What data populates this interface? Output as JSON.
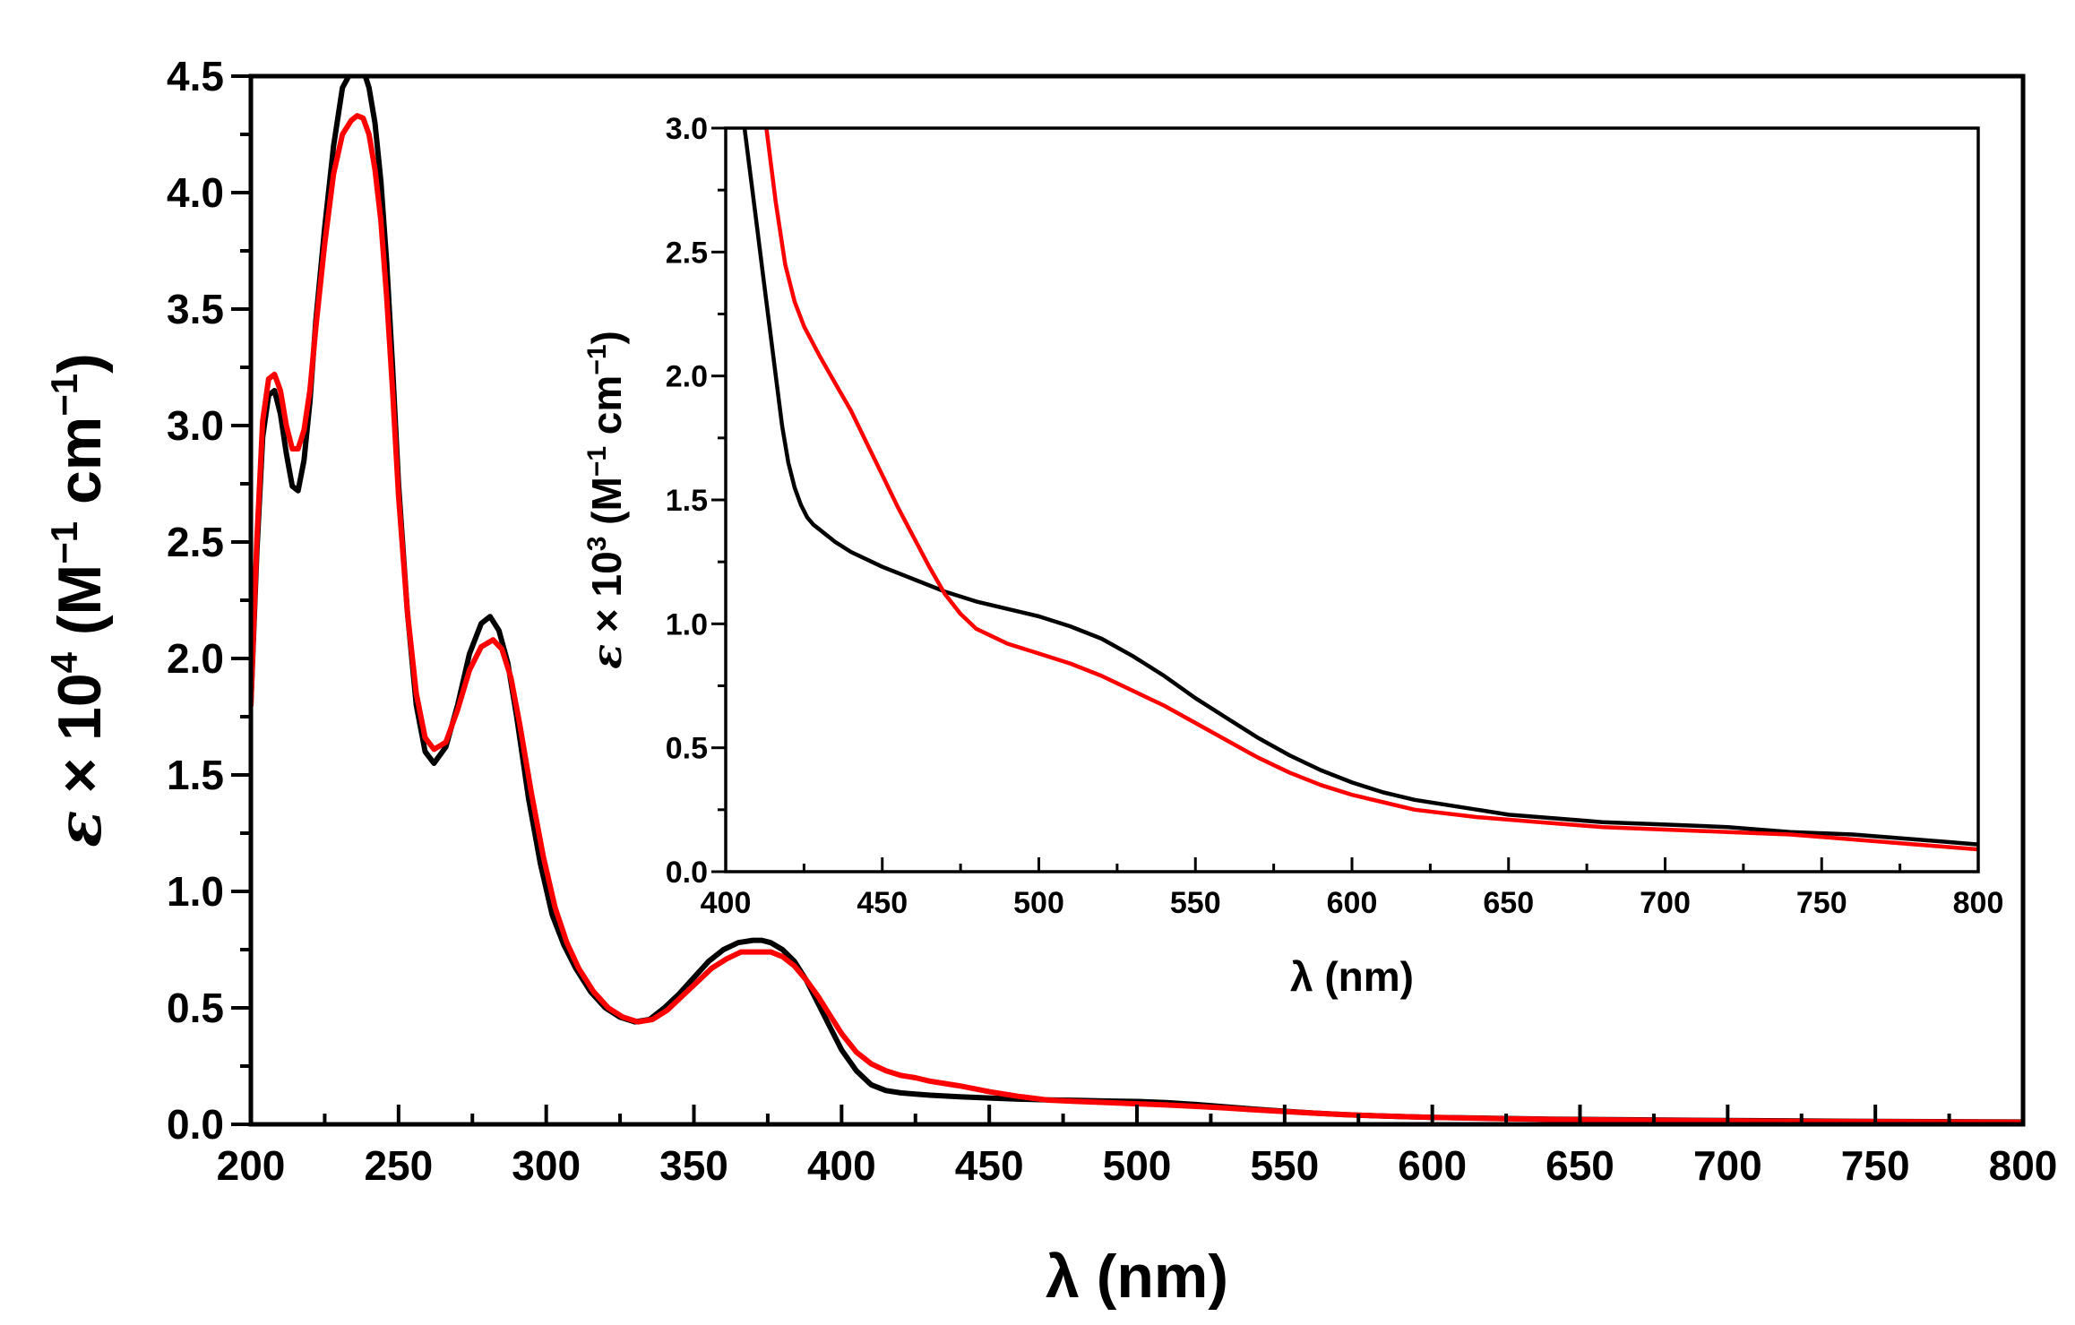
{
  "chart_data": [
    {
      "id": "main",
      "type": "line",
      "title": "",
      "xlabel": "λ (nm)",
      "ylabel": {
        "symbol": "ε",
        "mult": " × 10",
        "exp": "4",
        "unit_open": " (M",
        "unit_exp1": "−1",
        "unit_mid": " cm",
        "unit_exp2": "−1",
        "unit_close": ")"
      },
      "xlim": [
        200,
        800
      ],
      "ylim": [
        0,
        4.5
      ],
      "xticks": [
        200,
        250,
        300,
        350,
        400,
        450,
        500,
        550,
        600,
        650,
        700,
        750,
        800
      ],
      "xtick_labels": [
        "200",
        "250",
        "300",
        "350",
        "400",
        "450",
        "500",
        "550",
        "600",
        "650",
        "700",
        "750",
        "800"
      ],
      "yticks": [
        0,
        0.5,
        1,
        1.5,
        2,
        2.5,
        3,
        3.5,
        4,
        4.5
      ],
      "ytick_labels": [
        "0.0",
        "0.5",
        "1.0",
        "1.5",
        "2.0",
        "2.5",
        "3.0",
        "3.5",
        "4.0",
        "4.5"
      ],
      "grid": false,
      "series": [
        {
          "name": "black",
          "color": "#000000",
          "x": [
            200,
            202,
            204,
            206,
            208,
            210,
            212,
            214,
            216,
            218,
            220,
            222,
            225,
            228,
            231,
            234,
            236,
            238,
            240,
            242,
            244,
            246,
            248,
            250,
            253,
            256,
            259,
            262,
            266,
            270,
            274,
            278,
            281,
            284,
            287,
            290,
            294,
            298,
            302,
            306,
            310,
            315,
            320,
            325,
            330,
            335,
            340,
            345,
            350,
            355,
            360,
            365,
            370,
            373,
            376,
            380,
            384,
            388,
            392,
            396,
            400,
            405,
            410,
            415,
            420,
            425,
            430,
            440,
            450,
            460,
            470,
            480,
            490,
            500,
            510,
            520,
            530,
            540,
            550,
            560,
            570,
            580,
            590,
            600,
            620,
            640,
            660,
            680,
            700,
            720,
            740,
            760,
            780,
            800
          ],
          "y": [
            1.8,
            2.45,
            2.95,
            3.13,
            3.15,
            3.05,
            2.88,
            2.74,
            2.72,
            2.85,
            3.1,
            3.45,
            3.85,
            4.2,
            4.45,
            4.52,
            4.55,
            4.53,
            4.45,
            4.3,
            4.05,
            3.7,
            3.25,
            2.75,
            2.2,
            1.8,
            1.6,
            1.55,
            1.62,
            1.8,
            2.02,
            2.15,
            2.18,
            2.12,
            1.98,
            1.75,
            1.4,
            1.12,
            0.9,
            0.77,
            0.67,
            0.57,
            0.5,
            0.46,
            0.44,
            0.45,
            0.5,
            0.56,
            0.63,
            0.7,
            0.75,
            0.78,
            0.79,
            0.79,
            0.78,
            0.75,
            0.7,
            0.62,
            0.52,
            0.42,
            0.32,
            0.23,
            0.17,
            0.145,
            0.135,
            0.13,
            0.125,
            0.118,
            0.113,
            0.108,
            0.105,
            0.103,
            0.1,
            0.098,
            0.093,
            0.085,
            0.075,
            0.065,
            0.056,
            0.048,
            0.042,
            0.037,
            0.033,
            0.03,
            0.026,
            0.022,
            0.02,
            0.018,
            0.016,
            0.015,
            0.013,
            0.012,
            0.011,
            0.01
          ]
        },
        {
          "name": "red",
          "color": "#ff0000",
          "x": [
            200,
            202,
            204,
            206,
            208,
            210,
            212,
            214,
            216,
            218,
            220,
            222,
            225,
            228,
            231,
            234,
            236,
            238,
            240,
            242,
            244,
            246,
            248,
            250,
            253,
            256,
            259,
            262,
            266,
            270,
            274,
            278,
            282,
            285,
            288,
            291,
            295,
            299,
            303,
            307,
            311,
            316,
            321,
            326,
            331,
            336,
            341,
            346,
            351,
            356,
            361,
            366,
            371,
            376,
            380,
            384,
            388,
            392,
            396,
            400,
            405,
            410,
            415,
            420,
            425,
            430,
            440,
            450,
            460,
            470,
            480,
            490,
            500,
            510,
            520,
            530,
            540,
            550,
            560,
            570,
            580,
            590,
            600,
            620,
            640,
            660,
            680,
            700,
            720,
            740,
            760,
            780,
            800
          ],
          "y": [
            1.8,
            2.5,
            3.02,
            3.2,
            3.22,
            3.15,
            3.0,
            2.9,
            2.9,
            2.98,
            3.15,
            3.42,
            3.78,
            4.08,
            4.25,
            4.31,
            4.33,
            4.32,
            4.25,
            4.1,
            3.88,
            3.55,
            3.15,
            2.7,
            2.2,
            1.85,
            1.66,
            1.61,
            1.64,
            1.78,
            1.95,
            2.05,
            2.08,
            2.04,
            1.92,
            1.72,
            1.42,
            1.15,
            0.93,
            0.78,
            0.67,
            0.57,
            0.5,
            0.46,
            0.44,
            0.45,
            0.49,
            0.55,
            0.61,
            0.67,
            0.71,
            0.74,
            0.74,
            0.74,
            0.72,
            0.68,
            0.62,
            0.55,
            0.47,
            0.39,
            0.31,
            0.26,
            0.23,
            0.21,
            0.2,
            0.185,
            0.165,
            0.14,
            0.12,
            0.104,
            0.098,
            0.093,
            0.088,
            0.083,
            0.077,
            0.07,
            0.062,
            0.055,
            0.048,
            0.042,
            0.037,
            0.033,
            0.03,
            0.025,
            0.021,
            0.019,
            0.017,
            0.015,
            0.013,
            0.012,
            0.011,
            0.01,
            0.009
          ]
        }
      ]
    },
    {
      "id": "inset",
      "type": "line",
      "title": "",
      "xlabel": "λ (nm)",
      "ylabel": {
        "symbol": "ε",
        "mult": " × 10",
        "exp": "3",
        "unit_open": " (M",
        "unit_exp1": "−1",
        "unit_mid": " cm",
        "unit_exp2": "−1",
        "unit_close": ")"
      },
      "xlim": [
        400,
        800
      ],
      "ylim": [
        0,
        3
      ],
      "xticks": [
        400,
        450,
        500,
        550,
        600,
        650,
        700,
        750,
        800
      ],
      "xtick_labels": [
        "400",
        "450",
        "500",
        "550",
        "600",
        "650",
        "700",
        "750",
        "800"
      ],
      "yticks": [
        0,
        0.5,
        1,
        1.5,
        2,
        2.5,
        3
      ],
      "ytick_labels": [
        "0.0",
        "0.5",
        "1.0",
        "1.5",
        "2.0",
        "2.5",
        "3.0"
      ],
      "grid": false,
      "series": [
        {
          "name": "black",
          "color": "#000000",
          "x": [
            406,
            408,
            410,
            412,
            414,
            416,
            418,
            420,
            422,
            424,
            426,
            428,
            430,
            435,
            440,
            450,
            460,
            470,
            480,
            490,
            500,
            510,
            520,
            530,
            540,
            550,
            560,
            570,
            580,
            590,
            600,
            610,
            620,
            630,
            640,
            650,
            660,
            680,
            700,
            720,
            740,
            760,
            780,
            800
          ],
          "y": [
            3.0,
            2.8,
            2.6,
            2.4,
            2.2,
            2.0,
            1.8,
            1.65,
            1.55,
            1.48,
            1.43,
            1.4,
            1.38,
            1.33,
            1.29,
            1.23,
            1.18,
            1.13,
            1.09,
            1.06,
            1.03,
            0.99,
            0.94,
            0.87,
            0.79,
            0.7,
            0.62,
            0.54,
            0.47,
            0.41,
            0.36,
            0.32,
            0.29,
            0.27,
            0.25,
            0.23,
            0.22,
            0.2,
            0.19,
            0.18,
            0.16,
            0.15,
            0.13,
            0.11
          ]
        },
        {
          "name": "red",
          "color": "#ff0000",
          "x": [
            413,
            416,
            419,
            422,
            425,
            430,
            435,
            440,
            445,
            450,
            455,
            460,
            465,
            470,
            475,
            480,
            485,
            490,
            500,
            510,
            520,
            530,
            540,
            550,
            560,
            570,
            580,
            590,
            600,
            610,
            620,
            640,
            660,
            680,
            700,
            720,
            740,
            760,
            780,
            800
          ],
          "y": [
            3.0,
            2.7,
            2.45,
            2.3,
            2.2,
            2.08,
            1.97,
            1.86,
            1.73,
            1.6,
            1.47,
            1.35,
            1.23,
            1.12,
            1.04,
            0.98,
            0.95,
            0.92,
            0.88,
            0.84,
            0.79,
            0.73,
            0.67,
            0.6,
            0.53,
            0.46,
            0.4,
            0.35,
            0.31,
            0.28,
            0.25,
            0.22,
            0.2,
            0.18,
            0.17,
            0.16,
            0.15,
            0.13,
            0.11,
            0.09
          ]
        }
      ]
    }
  ]
}
